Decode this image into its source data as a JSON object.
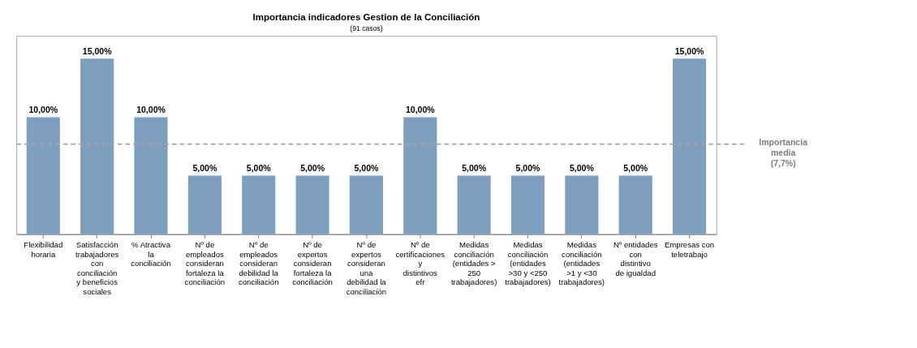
{
  "chart_data": {
    "type": "bar",
    "title": "Importancia indicadores Gestion de la Conciliación",
    "subtitle": "(91 casos)",
    "categories": [
      "Flexibilidad horaria",
      "Satisfacción trabajadores con conciliación y beneficios sociales",
      "% Atractiva la conciliación",
      "Nº de empleados consideran fortaleza la conciliación",
      "Nº de empleados consideran debilidad la conciliación",
      "Nº de expertos consideran fortaleza la conciliación",
      "Nº de expertos consideran una debilidad la conciliación",
      "Nº de certificaciones y distintivos efr",
      "Medidas conciliación (entidades > 250 trabajadores)",
      "Medidas conciliación (entidades >30 y <250 trabajadores)",
      "Medidas conciliación (entidades >1 y <30 trabajadores)",
      "Nº entidades con distintivo de igualdad",
      "Empresas con teletrabajo"
    ],
    "values": [
      10,
      15,
      10,
      5,
      5,
      5,
      5,
      10,
      5,
      5,
      5,
      5,
      15
    ],
    "value_labels": [
      "10,00%",
      "15,00%",
      "10,00%",
      "5,00%",
      "5,00%",
      "5,00%",
      "5,00%",
      "10,00%",
      "5,00%",
      "5,00%",
      "5,00%",
      "5,00%",
      "15,00%"
    ],
    "color": "#7f9fbf",
    "ref_lines": [
      {
        "axis": "y",
        "value": 7.7,
        "label": "Importancia media (7,7%)",
        "color": "#a6a6a6",
        "line_style": "dashed"
      }
    ],
    "grid": false
  }
}
